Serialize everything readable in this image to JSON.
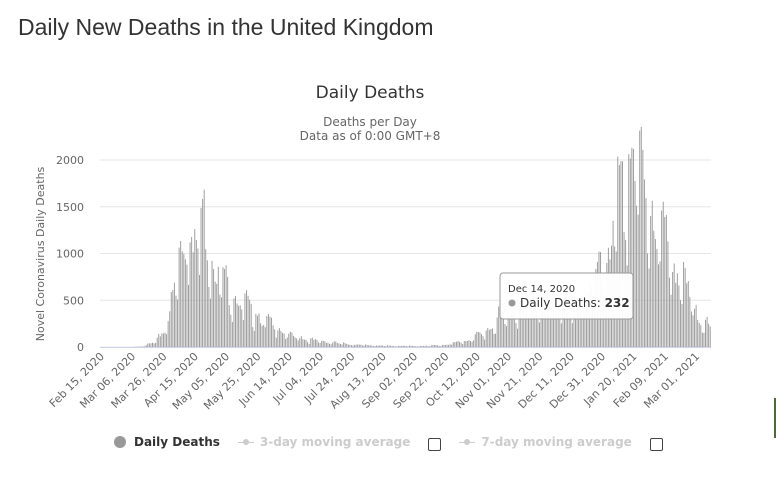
{
  "page": {
    "title": "Daily New Deaths in the United Kingdom"
  },
  "chart_data": {
    "type": "bar",
    "title": "Daily Deaths",
    "subtitle_lines": [
      "Deaths per Day",
      "Data as of 0:00 GMT+8"
    ],
    "ylabel": "Novel Coronavirus Daily Deaths",
    "xlabel": "",
    "ylim": [
      0,
      2000
    ],
    "yticks": [
      "0",
      "500",
      "1000",
      "1500",
      "2000"
    ],
    "grid": true,
    "bar_color": "#999999",
    "x_start": "2020-02-15",
    "x_end": "2021-03-10",
    "x_tick_labels": [
      "Feb 15, 2020",
      "Mar 06, 2020",
      "Mar 26, 2020",
      "Apr 15, 2020",
      "May 05, 2020",
      "May 25, 2020",
      "Jun 14, 2020",
      "Jul 04, 2020",
      "Jul 24, 2020",
      "Aug 13, 2020",
      "Sep 02, 2020",
      "Sep 22, 2020",
      "Oct 12, 2020",
      "Nov 01, 2020",
      "Nov 21, 2020",
      "Dec 11, 2020",
      "Dec 31, 2020",
      "Jan 20, 2021",
      "Feb 09, 2021",
      "Mar 01, 2021"
    ],
    "series": [
      {
        "name": "Daily Deaths",
        "anchors": [
          [
            "2020-02-15",
            0
          ],
          [
            "2020-03-06",
            0
          ],
          [
            "2020-03-12",
            5
          ],
          [
            "2020-03-18",
            30
          ],
          [
            "2020-03-22",
            60
          ],
          [
            "2020-03-26",
            150
          ],
          [
            "2020-03-30",
            300
          ],
          [
            "2020-04-03",
            640
          ],
          [
            "2020-04-07",
            850
          ],
          [
            "2020-04-10",
            1100
          ],
          [
            "2020-04-15",
            1000
          ],
          [
            "2020-04-21",
            1150
          ],
          [
            "2020-04-26",
            800
          ],
          [
            "2020-05-01",
            650
          ],
          [
            "2020-05-05",
            580
          ],
          [
            "2020-05-10",
            470
          ],
          [
            "2020-05-15",
            400
          ],
          [
            "2020-05-20",
            350
          ],
          [
            "2020-05-25",
            300
          ],
          [
            "2020-05-31",
            230
          ],
          [
            "2020-06-07",
            180
          ],
          [
            "2020-06-14",
            100
          ],
          [
            "2020-06-21",
            90
          ],
          [
            "2020-06-28",
            60
          ],
          [
            "2020-07-04",
            55
          ],
          [
            "2020-07-12",
            40
          ],
          [
            "2020-07-20",
            30
          ],
          [
            "2020-07-28",
            20
          ],
          [
            "2020-08-05",
            15
          ],
          [
            "2020-08-13",
            12
          ],
          [
            "2020-08-20",
            10
          ],
          [
            "2020-08-28",
            10
          ],
          [
            "2020-09-02",
            8
          ],
          [
            "2020-09-10",
            10
          ],
          [
            "2020-09-17",
            15
          ],
          [
            "2020-09-22",
            20
          ],
          [
            "2020-09-29",
            40
          ],
          [
            "2020-10-05",
            55
          ],
          [
            "2020-10-12",
            100
          ],
          [
            "2020-10-19",
            150
          ],
          [
            "2020-10-26",
            250
          ],
          [
            "2020-11-01",
            300
          ],
          [
            "2020-11-08",
            380
          ],
          [
            "2020-11-15",
            420
          ],
          [
            "2020-11-21",
            440
          ],
          [
            "2020-11-28",
            420
          ],
          [
            "2020-12-05",
            400
          ],
          [
            "2020-12-11",
            380
          ],
          [
            "2020-12-14",
            232
          ],
          [
            "2020-12-18",
            450
          ],
          [
            "2020-12-24",
            550
          ],
          [
            "2020-12-31",
            700
          ],
          [
            "2021-01-05",
            900
          ],
          [
            "2021-01-10",
            1250
          ],
          [
            "2021-01-15",
            1400
          ],
          [
            "2021-01-20",
            1820
          ],
          [
            "2021-01-25",
            1500
          ],
          [
            "2021-02-01",
            1200
          ],
          [
            "2021-02-09",
            1000
          ],
          [
            "2021-02-16",
            700
          ],
          [
            "2021-02-23",
            500
          ],
          [
            "2021-03-01",
            330
          ],
          [
            "2021-03-05",
            240
          ],
          [
            "2021-03-10",
            150
          ]
        ]
      },
      {
        "name": "3-day moving average",
        "enabled": false
      },
      {
        "name": "7-day moving average",
        "enabled": false
      }
    ],
    "tooltip": {
      "date": "Dec 14, 2020",
      "series": "Daily Deaths",
      "value": "232"
    }
  }
}
